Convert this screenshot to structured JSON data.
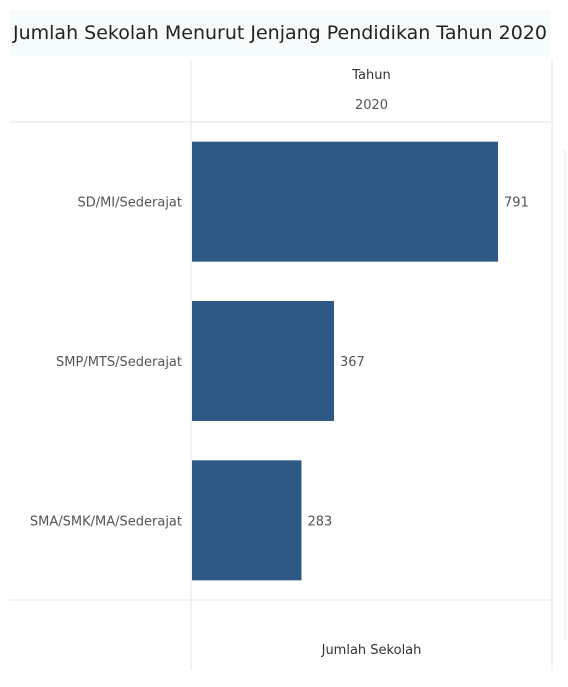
{
  "title": "Jumlah Sekolah Menurut Jenjang Pendidikan Tahun 2020",
  "header": {
    "column_title": "Tahun",
    "column_value": "2020"
  },
  "footer": {
    "axis_label": "Jumlah Sekolah"
  },
  "colors": {
    "bar": "#2d5984",
    "title_background": "#f5fcfb"
  },
  "chart_data": {
    "type": "bar",
    "orientation": "horizontal",
    "title": "Jumlah Sekolah Menurut Jenjang Pendidikan Tahun 2020",
    "categories": [
      "SD/MI/Sederajat",
      "SMP/MTS/Sederajat",
      "SMA/SMK/MA/Sederajat"
    ],
    "series": [
      {
        "name": "2020",
        "values": [
          791,
          367,
          283
        ]
      }
    ],
    "xlabel": "Jumlah Sekolah",
    "column_header": "Tahun",
    "xlim": [
      0,
      940
    ],
    "data_labels": true,
    "grid": false
  }
}
